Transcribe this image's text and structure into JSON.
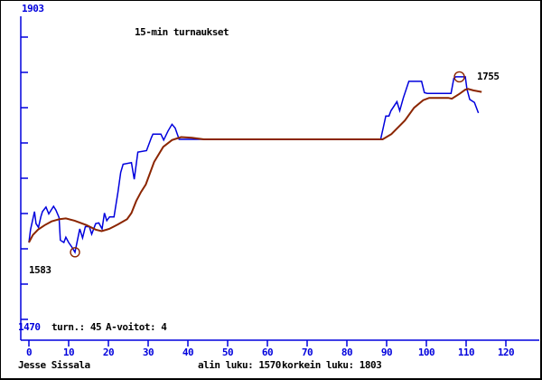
{
  "window": {
    "background": "#ffffff",
    "border_color": "#000000"
  },
  "colors": {
    "blue": "#0000dd",
    "dark_red": "#8b2500",
    "black": "#000000"
  },
  "labels": {
    "title": "15-min turnaukset",
    "y_axis_top": "1903",
    "y_axis_bottom": "1470",
    "start_rating": "1583",
    "end_rating": "1755",
    "stats_tournaments": "turn.: 45",
    "stats_a_wins": "A-voitot: 4",
    "player_name": "Jesse Sissala",
    "lowest": "alin luku: 1570",
    "highest": "korkein luku: 1803"
  },
  "chart_data": {
    "type": "line",
    "title": "15-min turnaukset",
    "xlabel": "",
    "ylabel": "",
    "xlim": [
      0,
      128
    ],
    "ylim": [
      1470,
      1903
    ],
    "grid": false,
    "x_axis": {
      "tick_values": [
        0,
        10,
        20,
        30,
        40,
        50,
        60,
        70,
        80,
        90,
        100,
        110,
        120
      ],
      "tick_labels": [
        "0",
        "10",
        "20",
        "30",
        "40",
        "50",
        "60",
        "70",
        "80",
        "90",
        "100",
        "110",
        "120"
      ]
    },
    "y_axis": {
      "top_value": 1903,
      "bottom_value": 1470,
      "tick_count": 9
    },
    "series": [
      {
        "name": "rating",
        "color": "#0000dd",
        "width": 1.5,
        "points": [
          [
            0,
            1583
          ],
          [
            0.4,
            1600
          ],
          [
            1.4,
            1624
          ],
          [
            1.8,
            1608
          ],
          [
            2.4,
            1603
          ],
          [
            3,
            1617
          ],
          [
            3.4,
            1624
          ],
          [
            4.3,
            1630
          ],
          [
            5,
            1621
          ],
          [
            6.2,
            1631
          ],
          [
            6.8,
            1626
          ],
          [
            7.6,
            1616
          ],
          [
            7.9,
            1586
          ],
          [
            8.8,
            1583
          ],
          [
            9.3,
            1590
          ],
          [
            10,
            1583
          ],
          [
            10.8,
            1577
          ],
          [
            11.6,
            1570
          ],
          [
            12.8,
            1601
          ],
          [
            13.5,
            1589
          ],
          [
            14.2,
            1604
          ],
          [
            15.2,
            1604
          ],
          [
            15.8,
            1594
          ],
          [
            16.8,
            1608
          ],
          [
            17.6,
            1609
          ],
          [
            18.4,
            1601
          ],
          [
            19,
            1622
          ],
          [
            19.6,
            1612
          ],
          [
            20.3,
            1617
          ],
          [
            21.4,
            1617
          ],
          [
            22.4,
            1650
          ],
          [
            23.1,
            1676
          ],
          [
            23.7,
            1687
          ],
          [
            25.8,
            1689
          ],
          [
            26.5,
            1667
          ],
          [
            27.4,
            1703
          ],
          [
            29.6,
            1705
          ],
          [
            30.8,
            1722
          ],
          [
            31.2,
            1727
          ],
          [
            33.2,
            1727
          ],
          [
            33.9,
            1719
          ],
          [
            35,
            1731
          ],
          [
            36,
            1740
          ],
          [
            36.8,
            1735
          ],
          [
            37.8,
            1720
          ],
          [
            88.5,
            1720
          ],
          [
            89.8,
            1751
          ],
          [
            90.6,
            1751
          ],
          [
            91.1,
            1758
          ],
          [
            92.6,
            1770
          ],
          [
            93.3,
            1758
          ],
          [
            94.2,
            1775
          ],
          [
            95.6,
            1797
          ],
          [
            98.8,
            1797
          ],
          [
            99.5,
            1782
          ],
          [
            100.2,
            1781
          ],
          [
            106.2,
            1781
          ],
          [
            106.9,
            1801
          ],
          [
            107.4,
            1803
          ],
          [
            109.8,
            1803
          ],
          [
            110.2,
            1787
          ],
          [
            110.9,
            1773
          ],
          [
            112.1,
            1769
          ],
          [
            113.1,
            1755
          ]
        ]
      },
      {
        "name": "trend-average",
        "color": "#8b2500",
        "width": 2,
        "points": [
          [
            0,
            1583
          ],
          [
            1,
            1593
          ],
          [
            2.3,
            1600
          ],
          [
            4,
            1606
          ],
          [
            5.7,
            1611
          ],
          [
            7.7,
            1614
          ],
          [
            9.3,
            1615
          ],
          [
            11.5,
            1612
          ],
          [
            14.5,
            1606
          ],
          [
            16.8,
            1600
          ],
          [
            18.3,
            1598
          ],
          [
            20.2,
            1601
          ],
          [
            22.4,
            1607
          ],
          [
            24.7,
            1614
          ],
          [
            25.8,
            1622
          ],
          [
            27,
            1638
          ],
          [
            28.2,
            1650
          ],
          [
            29.4,
            1660
          ],
          [
            31.5,
            1690
          ],
          [
            33.8,
            1710
          ],
          [
            36,
            1719
          ],
          [
            38.3,
            1723
          ],
          [
            41,
            1722
          ],
          [
            44,
            1720
          ],
          [
            89,
            1720
          ],
          [
            91.2,
            1727
          ],
          [
            94.6,
            1745
          ],
          [
            96.9,
            1762
          ],
          [
            99.2,
            1772
          ],
          [
            100.7,
            1775
          ],
          [
            105.5,
            1775
          ],
          [
            106.4,
            1774
          ],
          [
            108.2,
            1780
          ],
          [
            109.8,
            1786
          ],
          [
            110.5,
            1787
          ],
          [
            111.8,
            1785
          ],
          [
            113.9,
            1783
          ]
        ]
      }
    ],
    "markers": [
      {
        "type": "min-circle",
        "x": 11.6,
        "value": 1570,
        "radius": 5
      },
      {
        "type": "max-circle",
        "x": 108.3,
        "value": 1803,
        "radius": 5.5
      }
    ],
    "annotations": [
      {
        "id": "start_rating",
        "text": "1583",
        "x": 0,
        "value": 1583
      },
      {
        "id": "end_rating",
        "text": "1755",
        "x": 113.1,
        "value": 1755
      }
    ],
    "stats": {
      "y_bottom_label": "1470",
      "tournaments": 45,
      "a_wins": 4,
      "lowest": 1570,
      "highest": 1803
    }
  }
}
